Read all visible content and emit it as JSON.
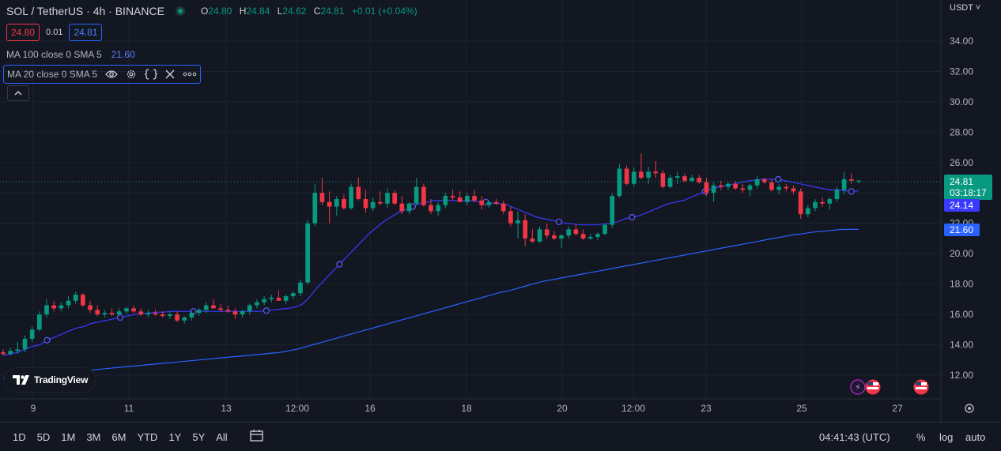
{
  "header": {
    "symbol": "SOL / TetherUS · 4h · BINANCE",
    "ohlc": {
      "open_label": "O",
      "open": "24.80",
      "high_label": "H",
      "high": "24.84",
      "low_label": "L",
      "low": "24.62",
      "close_label": "C",
      "close": "24.81",
      "change": "+0.01 (+0.04%)"
    },
    "sell_price": "24.80",
    "spread": "0.01",
    "buy_price": "24.81",
    "ma100_label": "MA 100 close 0 SMA 5",
    "ma100_value": "21.60",
    "ma20_label": "MA 20 close 0 SMA 5",
    "currency": "USDT"
  },
  "brand": {
    "name": "TradingView"
  },
  "bottom_bar": {
    "ranges": [
      "1D",
      "5D",
      "1M",
      "3M",
      "6M",
      "YTD",
      "1Y",
      "5Y",
      "All"
    ],
    "time": "04:41:43 (UTC)",
    "percent": "%",
    "log": "log",
    "auto": "auto"
  },
  "price_badges": {
    "last": "24.81",
    "countdown": "03:18:17",
    "ma20": "24.14",
    "ma100": "21.60"
  },
  "colors": {
    "background": "#131722",
    "up": "#089981",
    "down": "#f23645",
    "ma20": "#3a3aff",
    "ma100": "#2962ff",
    "grid": "#1e222d"
  },
  "icons": [
    "status-dot-icon",
    "eye-icon",
    "gear-icon",
    "braces-icon",
    "close-icon",
    "more-icon",
    "chevron-up-icon",
    "flash-icon",
    "us-flag-icon",
    "calendar-icon",
    "settings-icon"
  ],
  "chart_data": {
    "type": "candlestick",
    "ylim": [
      11,
      36
    ],
    "yticks": [
      "12.00",
      "14.00",
      "16.00",
      "18.00",
      "20.00",
      "22.00",
      "24.00",
      "26.00",
      "28.00",
      "30.00",
      "32.00",
      "34.00"
    ],
    "xticks": [
      "9",
      "11",
      "13",
      "12:00",
      "16",
      "18",
      "20",
      "12:00",
      "23",
      "25",
      "27"
    ],
    "ohlc": [
      [
        13.5,
        13.7,
        13.3,
        13.4
      ],
      [
        13.4,
        13.8,
        13.3,
        13.6
      ],
      [
        13.6,
        14.2,
        13.4,
        13.7
      ],
      [
        13.7,
        14.6,
        13.5,
        14.4
      ],
      [
        14.4,
        15.2,
        14.2,
        15.0
      ],
      [
        15.0,
        16.2,
        14.9,
        16.0
      ],
      [
        16.0,
        17.0,
        15.8,
        16.6
      ],
      [
        16.6,
        16.9,
        16.2,
        16.4
      ],
      [
        16.4,
        16.8,
        16.2,
        16.6
      ],
      [
        16.6,
        17.2,
        16.4,
        16.9
      ],
      [
        16.9,
        17.5,
        16.7,
        17.3
      ],
      [
        17.3,
        17.4,
        16.5,
        16.6
      ],
      [
        16.6,
        16.9,
        16.1,
        16.3
      ],
      [
        16.3,
        16.6,
        15.9,
        16.0
      ],
      [
        16.0,
        16.3,
        15.8,
        16.1
      ],
      [
        16.1,
        16.4,
        15.9,
        16.0
      ],
      [
        16.0,
        16.4,
        15.9,
        16.2
      ],
      [
        16.2,
        16.5,
        16.0,
        16.4
      ],
      [
        16.4,
        16.6,
        16.1,
        16.2
      ],
      [
        16.2,
        16.4,
        15.9,
        16.0
      ],
      [
        16.0,
        16.3,
        15.8,
        16.1
      ],
      [
        16.1,
        16.3,
        15.9,
        16.0
      ],
      [
        16.0,
        16.2,
        15.8,
        15.9
      ],
      [
        15.9,
        16.2,
        15.7,
        16.0
      ],
      [
        16.0,
        16.2,
        15.5,
        15.6
      ],
      [
        15.6,
        15.9,
        15.4,
        15.8
      ],
      [
        15.8,
        16.2,
        15.6,
        16.1
      ],
      [
        16.1,
        16.4,
        15.9,
        16.3
      ],
      [
        16.3,
        16.8,
        16.1,
        16.6
      ],
      [
        16.6,
        17.0,
        16.4,
        16.4
      ],
      [
        16.4,
        16.7,
        16.2,
        16.3
      ],
      [
        16.3,
        16.6,
        16.1,
        16.2
      ],
      [
        16.2,
        16.4,
        15.7,
        16.0
      ],
      [
        16.0,
        16.3,
        15.8,
        16.2
      ],
      [
        16.2,
        16.7,
        16.0,
        16.6
      ],
      [
        16.6,
        17.0,
        16.4,
        16.8
      ],
      [
        16.8,
        17.2,
        16.6,
        17.0
      ],
      [
        17.0,
        17.3,
        16.8,
        17.1
      ],
      [
        17.1,
        17.6,
        16.9,
        16.9
      ],
      [
        16.9,
        17.3,
        16.7,
        17.2
      ],
      [
        17.2,
        17.5,
        17.0,
        17.4
      ],
      [
        17.4,
        18.3,
        17.2,
        18.1
      ],
      [
        18.1,
        22.2,
        18.0,
        22.0
      ],
      [
        22.0,
        24.6,
        21.8,
        24.0
      ],
      [
        24.0,
        25.0,
        23.2,
        23.4
      ],
      [
        23.4,
        24.1,
        22.0,
        23.1
      ],
      [
        23.1,
        23.8,
        22.5,
        23.6
      ],
      [
        23.6,
        23.9,
        22.9,
        23.0
      ],
      [
        23.0,
        24.6,
        22.9,
        24.4
      ],
      [
        24.4,
        25.0,
        23.5,
        23.6
      ],
      [
        23.6,
        24.2,
        22.7,
        23.0
      ],
      [
        23.0,
        23.7,
        22.8,
        23.4
      ],
      [
        23.4,
        24.1,
        23.2,
        23.3
      ],
      [
        23.3,
        24.3,
        23.0,
        24.0
      ],
      [
        24.0,
        24.2,
        23.2,
        23.3
      ],
      [
        23.3,
        23.8,
        22.6,
        22.8
      ],
      [
        22.8,
        23.4,
        22.6,
        23.3
      ],
      [
        23.3,
        25.0,
        23.2,
        24.4
      ],
      [
        24.4,
        24.6,
        23.1,
        23.2
      ],
      [
        23.2,
        23.6,
        22.6,
        22.8
      ],
      [
        22.8,
        23.4,
        22.5,
        23.2
      ],
      [
        23.2,
        24.0,
        23.0,
        23.8
      ],
      [
        23.8,
        24.2,
        23.5,
        23.7
      ],
      [
        23.7,
        24.1,
        23.4,
        23.4
      ],
      [
        23.4,
        24.0,
        23.2,
        23.8
      ],
      [
        23.8,
        24.2,
        23.4,
        23.5
      ],
      [
        23.5,
        23.8,
        22.9,
        23.2
      ],
      [
        23.2,
        23.5,
        23.0,
        23.4
      ],
      [
        23.4,
        23.6,
        23.2,
        23.3
      ],
      [
        23.3,
        23.5,
        22.6,
        22.8
      ],
      [
        22.8,
        23.1,
        21.8,
        22.0
      ],
      [
        22.0,
        22.8,
        21.0,
        22.2
      ],
      [
        22.2,
        22.6,
        20.5,
        21.0
      ],
      [
        21.0,
        21.6,
        20.7,
        20.8
      ],
      [
        20.8,
        21.8,
        20.7,
        21.6
      ],
      [
        21.6,
        22.0,
        21.0,
        21.2
      ],
      [
        21.2,
        21.5,
        20.9,
        21.0
      ],
      [
        21.0,
        21.3,
        20.4,
        21.2
      ],
      [
        21.2,
        21.8,
        21.0,
        21.6
      ],
      [
        21.6,
        21.9,
        21.2,
        21.3
      ],
      [
        21.3,
        21.6,
        20.9,
        21.0
      ],
      [
        21.0,
        21.3,
        20.9,
        21.1
      ],
      [
        21.1,
        21.4,
        20.9,
        21.3
      ],
      [
        21.3,
        22.0,
        21.2,
        21.9
      ],
      [
        21.9,
        24.0,
        21.7,
        23.8
      ],
      [
        23.8,
        25.9,
        23.7,
        25.6
      ],
      [
        25.6,
        25.8,
        24.5,
        24.6
      ],
      [
        24.6,
        25.7,
        24.4,
        25.4
      ],
      [
        25.4,
        26.6,
        24.9,
        25.0
      ],
      [
        25.0,
        25.7,
        24.6,
        25.4
      ],
      [
        25.4,
        26.1,
        25.0,
        25.3
      ],
      [
        25.3,
        25.5,
        24.3,
        24.4
      ],
      [
        24.4,
        25.2,
        24.3,
        25.0
      ],
      [
        25.0,
        25.4,
        24.6,
        25.1
      ],
      [
        25.1,
        25.3,
        24.7,
        24.8
      ],
      [
        24.8,
        25.2,
        24.7,
        25.0
      ],
      [
        25.0,
        25.2,
        24.6,
        24.7
      ],
      [
        24.7,
        25.0,
        23.8,
        24.0
      ],
      [
        24.0,
        24.7,
        23.4,
        24.5
      ],
      [
        24.5,
        24.8,
        24.2,
        24.4
      ],
      [
        24.4,
        24.7,
        24.2,
        24.6
      ],
      [
        24.6,
        24.8,
        24.2,
        24.3
      ],
      [
        24.3,
        24.6,
        24.0,
        24.2
      ],
      [
        24.2,
        24.6,
        23.8,
        24.5
      ],
      [
        24.5,
        25.1,
        24.3,
        24.9
      ],
      [
        24.9,
        25.0,
        24.6,
        24.7
      ],
      [
        24.7,
        24.9,
        24.1,
        24.2
      ],
      [
        24.2,
        24.6,
        23.9,
        24.4
      ],
      [
        24.4,
        24.6,
        24.1,
        24.3
      ],
      [
        24.3,
        24.5,
        23.9,
        24.1
      ],
      [
        24.1,
        24.3,
        22.3,
        22.6
      ],
      [
        22.6,
        23.2,
        22.4,
        23.0
      ],
      [
        23.0,
        23.6,
        22.8,
        23.4
      ],
      [
        23.4,
        23.7,
        23.1,
        23.3
      ],
      [
        23.3,
        23.7,
        22.9,
        23.6
      ],
      [
        23.6,
        24.4,
        23.4,
        24.2
      ],
      [
        24.2,
        25.4,
        23.9,
        24.9
      ],
      [
        24.9,
        25.3,
        24.6,
        24.81
      ],
      [
        24.8,
        24.84,
        24.62,
        24.81
      ]
    ],
    "ma20": [
      13.3,
      13.4,
      13.5,
      13.7,
      13.9,
      14.0,
      14.3,
      14.5,
      14.7,
      14.9,
      15.1,
      15.2,
      15.4,
      15.5,
      15.6,
      15.7,
      15.8,
      15.9,
      16.0,
      16.05,
      16.1,
      16.15,
      16.15,
      16.2,
      16.2,
      16.2,
      16.2,
      16.2,
      16.2,
      16.2,
      16.2,
      16.2,
      16.2,
      16.2,
      16.2,
      16.2,
      16.25,
      16.3,
      16.35,
      16.4,
      16.5,
      16.7,
      17.2,
      17.8,
      18.3,
      18.8,
      19.3,
      19.8,
      20.3,
      20.8,
      21.3,
      21.7,
      22.1,
      22.4,
      22.7,
      22.9,
      23.1,
      23.3,
      23.4,
      23.5,
      23.5,
      23.5,
      23.5,
      23.5,
      23.5,
      23.4,
      23.4,
      23.3,
      23.3,
      23.2,
      23.0,
      22.8,
      22.6,
      22.4,
      22.3,
      22.2,
      22.1,
      22.0,
      21.95,
      21.9,
      21.9,
      21.9,
      21.95,
      22.0,
      22.1,
      22.3,
      22.4,
      22.5,
      22.7,
      22.9,
      23.1,
      23.3,
      23.4,
      23.5,
      23.7,
      23.9,
      24.1,
      24.3,
      24.4,
      24.5,
      24.6,
      24.7,
      24.8,
      24.85,
      24.9,
      24.9,
      24.9,
      24.8,
      24.7,
      24.6,
      24.5,
      24.4,
      24.3,
      24.2,
      24.2,
      24.15,
      24.1,
      24.14
    ],
    "ma100": [
      11.8,
      11.85,
      11.9,
      11.95,
      12.0,
      12.05,
      12.1,
      12.15,
      12.2,
      12.25,
      12.3,
      12.35,
      12.4,
      12.45,
      12.5,
      12.55,
      12.6,
      12.65,
      12.7,
      12.75,
      12.8,
      12.85,
      12.9,
      12.95,
      13.0,
      13.05,
      13.1,
      13.15,
      13.2,
      13.25,
      13.3,
      13.35,
      13.4,
      13.45,
      13.5,
      13.6,
      13.7,
      13.85,
      14.0,
      14.15,
      14.3,
      14.45,
      14.6,
      14.75,
      14.9,
      15.05,
      15.2,
      15.35,
      15.5,
      15.65,
      15.8,
      15.95,
      16.1,
      16.25,
      16.4,
      16.55,
      16.7,
      16.85,
      17.0,
      17.15,
      17.3,
      17.45,
      17.55,
      17.7,
      17.85,
      18.0,
      18.15,
      18.25,
      18.35,
      18.45,
      18.55,
      18.65,
      18.75,
      18.85,
      18.95,
      19.05,
      19.15,
      19.25,
      19.35,
      19.45,
      19.55,
      19.65,
      19.75,
      19.85,
      19.95,
      20.05,
      20.15,
      20.25,
      20.35,
      20.45,
      20.55,
      20.65,
      20.75,
      20.85,
      20.95,
      21.05,
      21.15,
      21.25,
      21.3,
      21.4,
      21.45,
      21.5,
      21.55,
      21.6,
      21.6,
      21.6
    ]
  }
}
